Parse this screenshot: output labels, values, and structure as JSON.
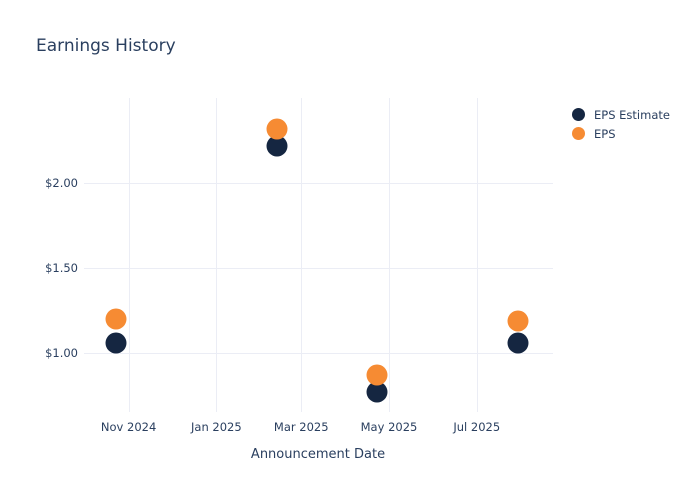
{
  "chart_data": {
    "type": "scatter",
    "title": "Earnings History",
    "xlabel": "Announcement Date",
    "ylabel": "",
    "background": "#FFFFFF",
    "grid_color": "#EBEDF5",
    "text_color": "#2A3F5F",
    "grid": true,
    "legend_position": "right-top",
    "x_range": [
      "2024-10-01",
      "2025-08-23"
    ],
    "y_range": [
      0.653,
      2.5
    ],
    "x_ticks": [
      {
        "date": "2024-11-01",
        "label": "Nov 2024"
      },
      {
        "date": "2025-01-01",
        "label": "Jan 2025"
      },
      {
        "date": "2025-03-01",
        "label": "Mar 2025"
      },
      {
        "date": "2025-05-01",
        "label": "May 2025"
      },
      {
        "date": "2025-07-01",
        "label": "Jul 2025"
      }
    ],
    "y_ticks": [
      {
        "value": 1.0,
        "label": "$1.00"
      },
      {
        "value": 1.5,
        "label": "$1.50"
      },
      {
        "value": 2.0,
        "label": "$2.00"
      }
    ],
    "series": [
      {
        "name": "EPS Estimate",
        "color": "#152641",
        "points": [
          {
            "date": "2024-10-23",
            "value": 1.06
          },
          {
            "date": "2025-02-12",
            "value": 2.22
          },
          {
            "date": "2025-04-23",
            "value": 0.77
          },
          {
            "date": "2025-07-30",
            "value": 1.06
          }
        ]
      },
      {
        "name": "EPS",
        "color": "#F68B33",
        "points": [
          {
            "date": "2024-10-23",
            "value": 1.2
          },
          {
            "date": "2025-02-12",
            "value": 2.32
          },
          {
            "date": "2025-04-23",
            "value": 0.87
          },
          {
            "date": "2025-07-30",
            "value": 1.19
          }
        ]
      }
    ]
  }
}
